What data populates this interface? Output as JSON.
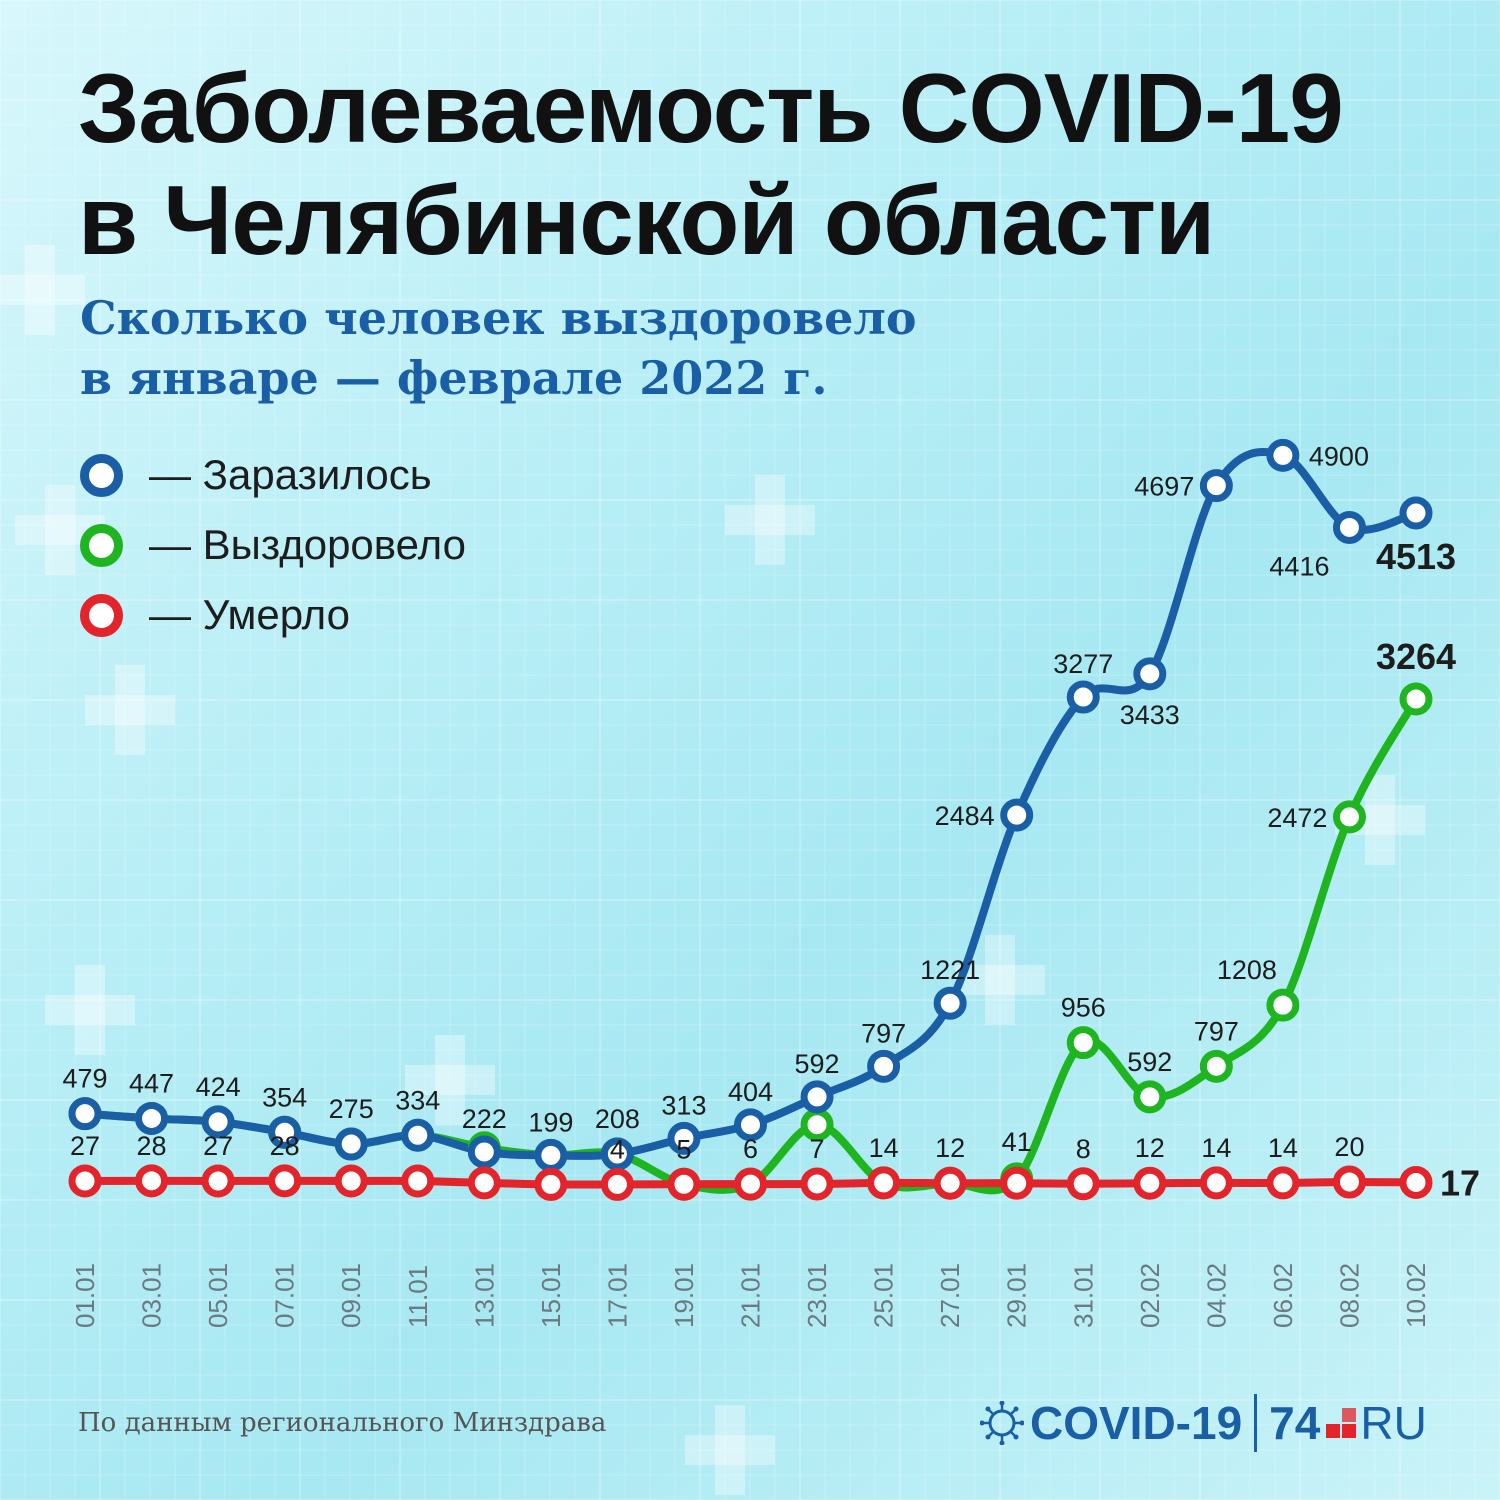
{
  "title": {
    "line1": "Заболеваемость COVID-19",
    "line2": "в Челябинской области"
  },
  "subtitle": {
    "line1": "Сколько человек выздоровело",
    "line2": "в январе — феврале 2022 г."
  },
  "footer": {
    "source": "По данным регионального Минздрава"
  },
  "brand": {
    "covid": "COVID-19",
    "site": "74",
    "ru": "RU"
  },
  "colors": {
    "infected": "#1a5ea6",
    "recovered": "#1fb520",
    "died": "#e3242b"
  },
  "chart_data": {
    "type": "line",
    "x": [
      "01.01",
      "03.01",
      "05.01",
      "07.01",
      "09.01",
      "11.01",
      "13.01",
      "15.01",
      "17.01",
      "19.01",
      "21.01",
      "23.01",
      "25.01",
      "27.01",
      "29.01",
      "31.01",
      "02.02",
      "04.02",
      "06.02",
      "08.02",
      "10.02"
    ],
    "series": [
      {
        "name": "— Заразилось",
        "key": "infected",
        "color": "#1a5ea6",
        "values": [
          479,
          447,
          424,
          354,
          275,
          334,
          222,
          199,
          208,
          313,
          404,
          592,
          797,
          1221,
          2484,
          3277,
          3433,
          4697,
          4900,
          4416,
          4513
        ],
        "labels": [
          "",
          "",
          "",
          "",
          "",
          "",
          "222",
          "199",
          "",
          "313",
          "404",
          "592",
          "797",
          "1221",
          "2484",
          "3277",
          "3433",
          "4697",
          "4900",
          "4416",
          "4513"
        ]
      },
      {
        "name": "— Выздоровело",
        "key": "recovered",
        "color": "#1fb520",
        "values": [
          479,
          447,
          424,
          354,
          275,
          334,
          250,
          199,
          208,
          5,
          6,
          405,
          14,
          12,
          41,
          956,
          592,
          797,
          1208,
          2472,
          3264
        ],
        "labels": [
          "479",
          "447",
          "424",
          "354",
          "275",
          "334",
          "",
          "",
          "208",
          "",
          "",
          "",
          "",
          "",
          "41",
          "956",
          "592",
          "797",
          "1208",
          "2472",
          "3264"
        ]
      },
      {
        "name": "— Умерло",
        "key": "died",
        "color": "#e3242b",
        "values": [
          27,
          28,
          27,
          28,
          27,
          27,
          14,
          4,
          4,
          5,
          6,
          7,
          14,
          12,
          12,
          8,
          12,
          14,
          14,
          20,
          17
        ],
        "labels": [
          "27",
          "28",
          "27",
          "28",
          "",
          "",
          "",
          "",
          "4",
          "5",
          "6",
          "7",
          "14",
          "12",
          "",
          "8",
          "12",
          "14",
          "14",
          "20",
          "17"
        ]
      }
    ]
  }
}
